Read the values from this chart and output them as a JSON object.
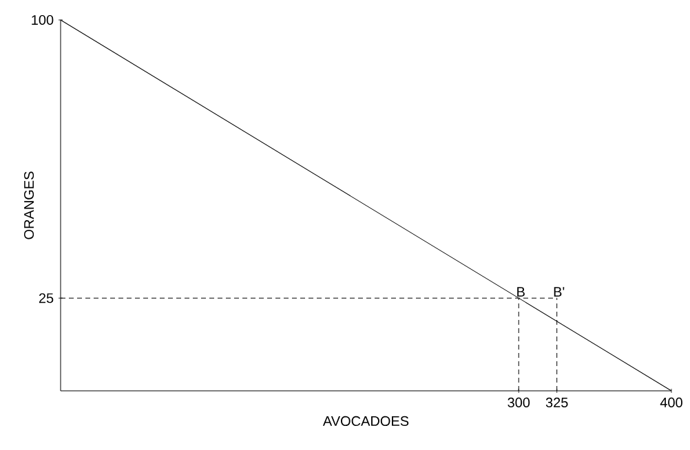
{
  "chart_data": {
    "type": "line",
    "xlabel": "AVOCADOES",
    "ylabel": "ORANGES",
    "xlim": [
      0,
      400
    ],
    "ylim": [
      0,
      100
    ],
    "xticks": [
      300,
      325,
      400
    ],
    "yticks": [
      25,
      100
    ],
    "grid": false,
    "marker": "none",
    "series": [
      {
        "x": [
          0,
          400
        ],
        "values": [
          100,
          0
        ],
        "color": "#000000",
        "line_style": "solid"
      },
      {
        "x": [
          0,
          325
        ],
        "values": [
          25,
          25
        ],
        "color": "#000000",
        "line_style": "dashed"
      },
      {
        "x": [
          300,
          300
        ],
        "values": [
          0,
          25
        ],
        "color": "#000000",
        "line_style": "dashed"
      },
      {
        "x": [
          325,
          325
        ],
        "values": [
          0,
          25
        ],
        "color": "#000000",
        "line_style": "dashed"
      }
    ],
    "annotations": [
      {
        "text": "B",
        "x": 300,
        "y": 25
      },
      {
        "text": "B'",
        "x": 325,
        "y": 25
      }
    ]
  }
}
